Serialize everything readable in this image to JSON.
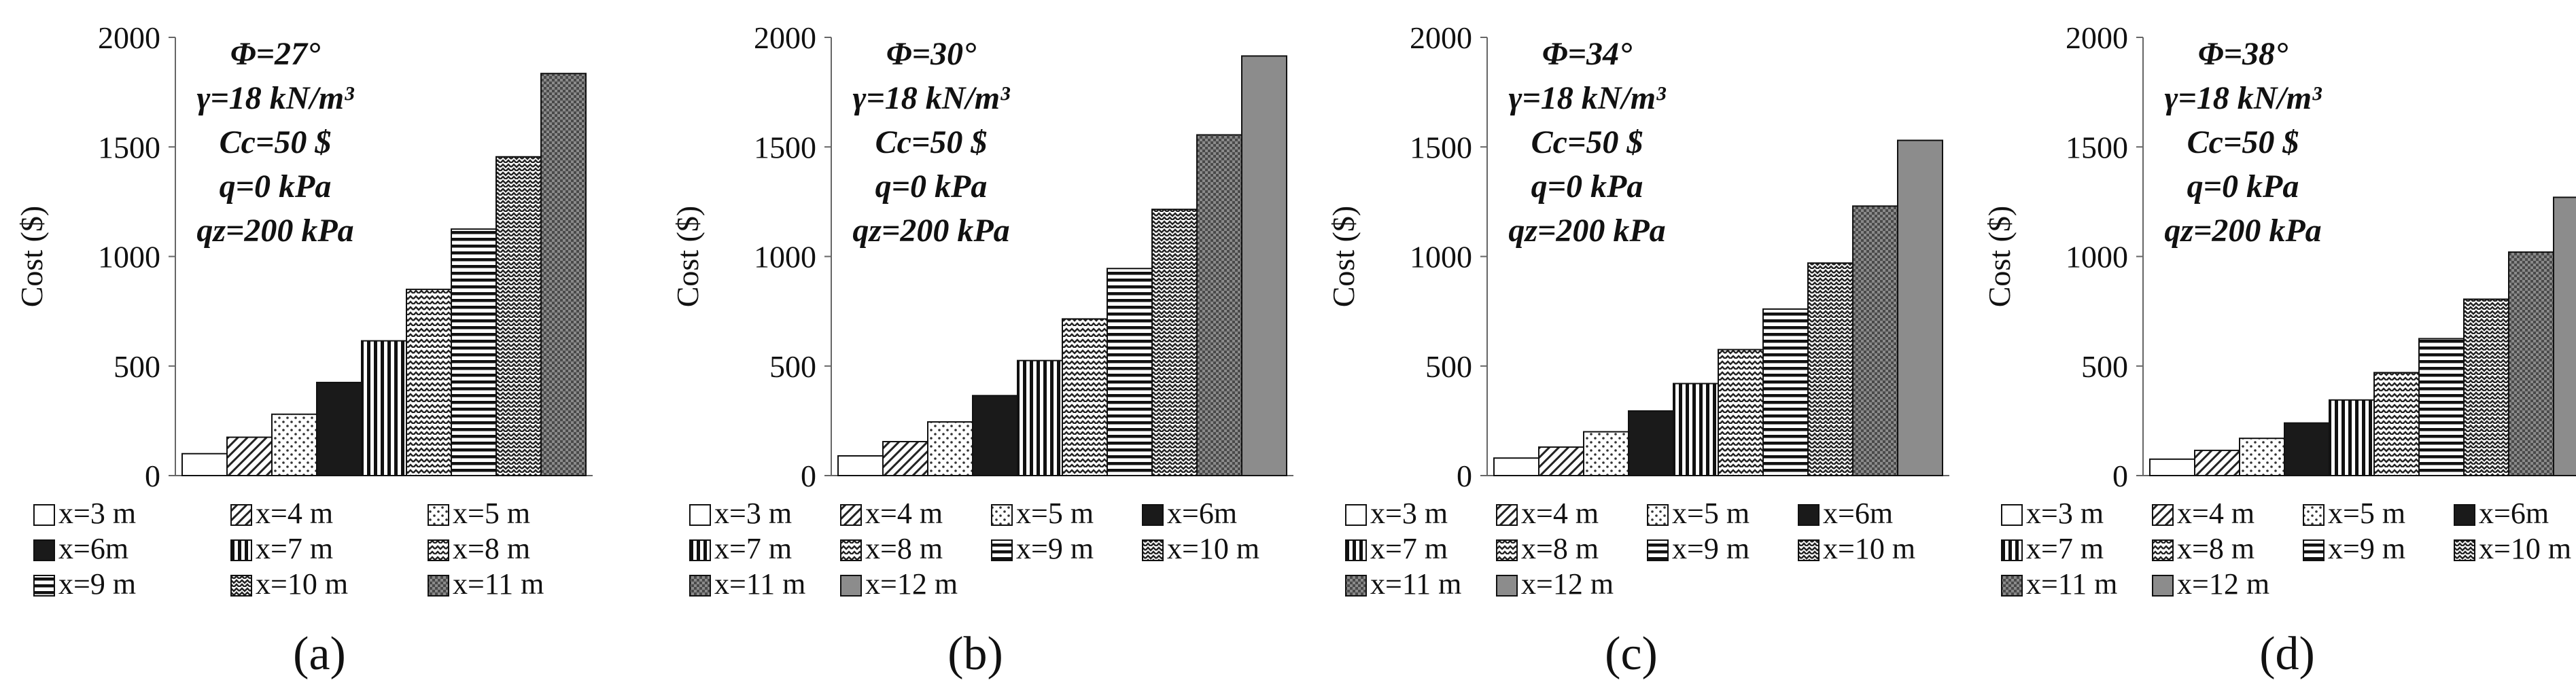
{
  "chart_data": [
    {
      "type": "bar",
      "panel_label": "(a)",
      "ylabel": "Cost ($)",
      "ylim": [
        0,
        2000
      ],
      "yticks": [
        0,
        500,
        1000,
        1500,
        2000
      ],
      "annotation": [
        "Φ=27°",
        "γ=18 kN/m³",
        "Cc=50 $",
        "q=0 kPa",
        "qz=200 kPa"
      ],
      "categories": [
        "x=3 m",
        "x=4 m",
        "x=5 m",
        "x=6m",
        "x=7 m",
        "x=8 m",
        "x=9 m",
        "x=10 m",
        "x=11 m"
      ],
      "values": [
        100,
        175,
        280,
        425,
        615,
        850,
        1125,
        1455,
        1835
      ],
      "legend_columns": 3
    },
    {
      "type": "bar",
      "panel_label": "(b)",
      "ylabel": "Cost ($)",
      "ylim": [
        0,
        2000
      ],
      "yticks": [
        0,
        500,
        1000,
        1500,
        2000
      ],
      "annotation": [
        "Φ=30°",
        "γ=18 kN/m³",
        "Cc=50 $",
        "q=0 kPa",
        "qz=200 kPa"
      ],
      "categories": [
        "x=3 m",
        "x=4 m",
        "x=5 m",
        "x=6m",
        "x=7 m",
        "x=8 m",
        "x=9 m",
        "x=10 m",
        "x=11 m",
        "x=12 m"
      ],
      "values": [
        90,
        155,
        245,
        365,
        525,
        715,
        945,
        1215,
        1555,
        1915
      ],
      "legend_columns": 4
    },
    {
      "type": "bar",
      "panel_label": "(c)",
      "ylabel": "Cost ($)",
      "ylim": [
        0,
        2000
      ],
      "yticks": [
        0,
        500,
        1000,
        1500,
        2000
      ],
      "annotation": [
        "Φ=34°",
        "γ=18 kN/m³",
        "Cc=50 $",
        "q=0 kPa",
        "qz=200 kPa"
      ],
      "categories": [
        "x=3 m",
        "x=4 m",
        "x=5 m",
        "x=6m",
        "x=7 m",
        "x=8 m",
        "x=9 m",
        "x=10 m",
        "x=11 m",
        "x=12 m"
      ],
      "values": [
        80,
        130,
        200,
        295,
        420,
        575,
        760,
        970,
        1230,
        1530
      ],
      "legend_columns": 4
    },
    {
      "type": "bar",
      "panel_label": "(d)",
      "ylabel": "Cost ($)",
      "ylim": [
        0,
        2000
      ],
      "yticks": [
        0,
        500,
        1000,
        1500,
        2000
      ],
      "annotation": [
        "Φ=38°",
        "γ=18 kN/m³",
        "Cc=50 $",
        "q=0 kPa",
        "qz=200 kPa"
      ],
      "categories": [
        "x=3 m",
        "x=4 m",
        "x=5 m",
        "x=6m",
        "x=7 m",
        "x=8 m",
        "x=9 m",
        "x=10 m",
        "x=11 m",
        "x=12 m"
      ],
      "values": [
        75,
        115,
        170,
        240,
        345,
        470,
        625,
        805,
        1020,
        1270
      ],
      "legend_columns": 4
    }
  ]
}
